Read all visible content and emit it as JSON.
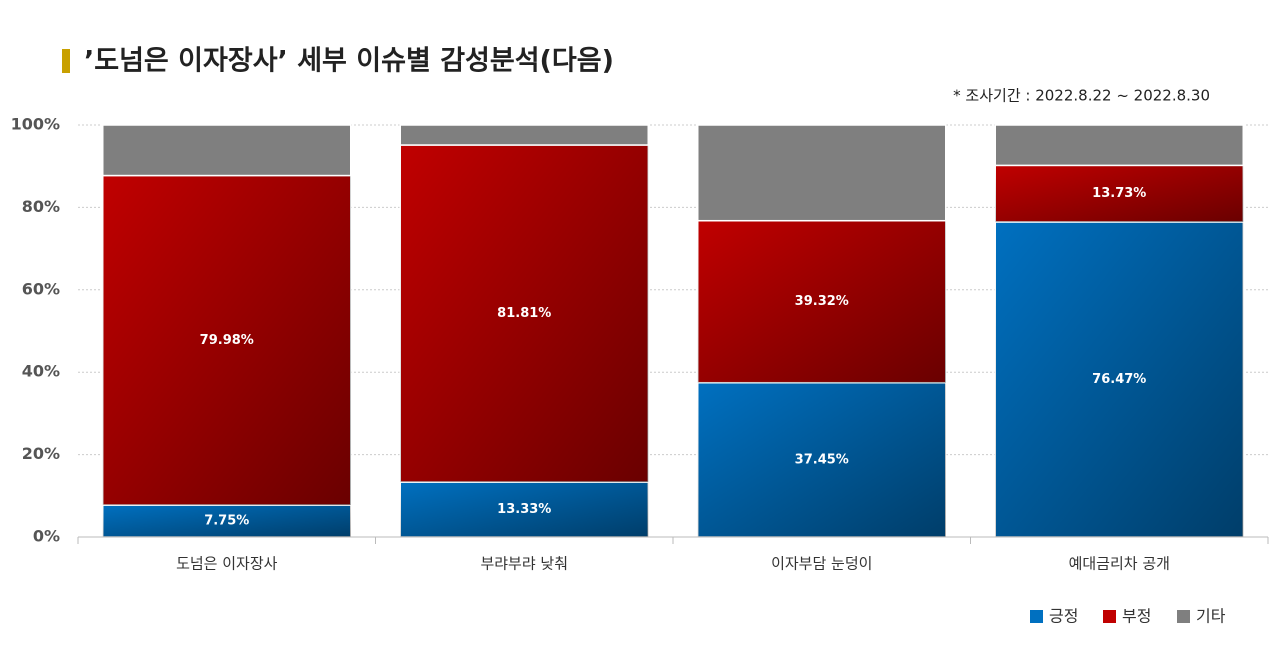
{
  "chart_data": {
    "type": "stacked_bar",
    "title": "’도넘은 이자장사’ 세부 이슈별 감성분석(다음)",
    "subtitle": "* 조사기간 : 2022.8.22 ~ 2022.8.30",
    "categories": [
      "도넘은 이자장사",
      "부랴부랴 낮춰",
      "이자부담 눈덩이",
      "예대금리차 공개"
    ],
    "series": [
      {
        "name": "긍정",
        "color": "#0070c0",
        "values": [
          7.75,
          13.33,
          37.45,
          76.47
        ],
        "value_labels": [
          "7.75%",
          "13.33%",
          "37.45%",
          "76.47%"
        ]
      },
      {
        "name": "부정",
        "color": "#c00000",
        "values": [
          79.98,
          81.81,
          39.32,
          13.73
        ],
        "value_labels": [
          "79.98%",
          "81.81%",
          "39.32%",
          "13.73%"
        ]
      },
      {
        "name": "기타",
        "color": "#7f7f7f",
        "values": [
          12.27,
          4.86,
          23.23,
          9.8
        ]
      }
    ],
    "ylim": [
      0,
      100
    ],
    "yticks": [
      {
        "value": 0,
        "label": "0%"
      },
      {
        "value": 20,
        "label": "20%"
      },
      {
        "value": 40,
        "label": "40%"
      },
      {
        "value": 60,
        "label": "60%"
      },
      {
        "value": 80,
        "label": "80%"
      },
      {
        "value": 100,
        "label": "100%"
      }
    ],
    "grid": true,
    "legend": "bottom-right"
  }
}
